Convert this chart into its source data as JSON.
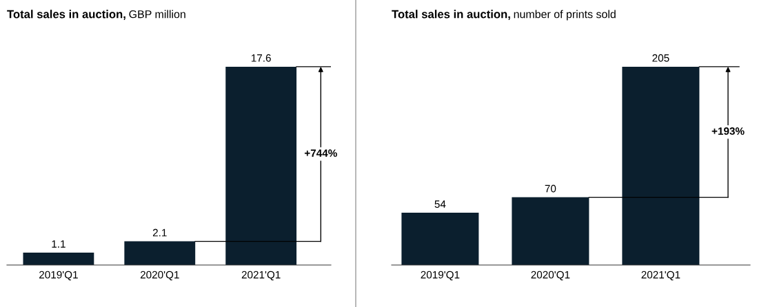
{
  "chart_data": [
    {
      "type": "bar",
      "title": "Total sales in auction,",
      "subtitle": "GBP million",
      "categories": [
        "2019'Q1",
        "2020'Q1",
        "2021'Q1"
      ],
      "values": [
        1.1,
        2.1,
        17.6
      ],
      "color": "#0b1f2e",
      "data_labels": true,
      "annotations": [
        "+744%"
      ]
    },
    {
      "type": "bar",
      "title": "Total sales in auction,",
      "subtitle": "number of prints sold",
      "categories": [
        "2019'Q1",
        "2020'Q1",
        "2021'Q1"
      ],
      "values": [
        54,
        70,
        205
      ],
      "color": "#0b1f2e",
      "data_labels": true,
      "annotations": [
        "+193%"
      ]
    }
  ]
}
